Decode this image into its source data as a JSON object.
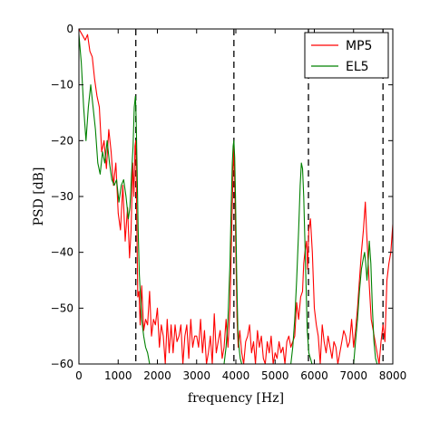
{
  "chart_data": {
    "type": "line",
    "xlabel": "frequency [Hz]",
    "ylabel": "PSD [dB]",
    "xlim": [
      0,
      8000
    ],
    "ylim": [
      -60,
      0
    ],
    "xticks": [
      0,
      1000,
      2000,
      3000,
      4000,
      5000,
      6000,
      7000,
      8000
    ],
    "yticks": [
      0,
      -10,
      -20,
      -30,
      -40,
      -50,
      -60
    ],
    "grid": false,
    "legend_position": "top-right",
    "reference_lines": {
      "style": "dashed",
      "color": "#000000",
      "x": [
        1450,
        3950,
        5850,
        7750
      ]
    },
    "series": [
      {
        "name": "MP5",
        "color": "#ff0000",
        "x": [
          0,
          80,
          160,
          220,
          280,
          340,
          400,
          460,
          520,
          580,
          640,
          700,
          760,
          820,
          880,
          940,
          1000,
          1060,
          1120,
          1180,
          1240,
          1290,
          1330,
          1370,
          1400,
          1430,
          1450,
          1470,
          1500,
          1530,
          1560,
          1600,
          1650,
          1700,
          1750,
          1800,
          1850,
          1900,
          1950,
          2000,
          2050,
          2100,
          2150,
          2200,
          2250,
          2300,
          2350,
          2400,
          2450,
          2500,
          2550,
          2600,
          2650,
          2700,
          2750,
          2800,
          2850,
          2900,
          2950,
          3000,
          3050,
          3100,
          3150,
          3200,
          3250,
          3300,
          3350,
          3400,
          3450,
          3500,
          3550,
          3600,
          3650,
          3700,
          3750,
          3800,
          3850,
          3900,
          3930,
          3950,
          3970,
          4000,
          4030,
          4060,
          4100,
          4150,
          4200,
          4250,
          4300,
          4350,
          4400,
          4450,
          4500,
          4550,
          4600,
          4650,
          4700,
          4750,
          4800,
          4850,
          4900,
          4950,
          5000,
          5050,
          5100,
          5150,
          5200,
          5250,
          5300,
          5350,
          5400,
          5450,
          5500,
          5550,
          5600,
          5650,
          5700,
          5730,
          5760,
          5800,
          5830,
          5860,
          5900,
          5950,
          6000,
          6050,
          6100,
          6150,
          6200,
          6250,
          6300,
          6350,
          6400,
          6450,
          6500,
          6550,
          6600,
          6650,
          6700,
          6750,
          6800,
          6850,
          6900,
          6950,
          7000,
          7050,
          7100,
          7150,
          7200,
          7250,
          7300,
          7330,
          7360,
          7400,
          7450,
          7500,
          7550,
          7600,
          7650,
          7700,
          7750,
          7800,
          7850,
          7900,
          7950,
          8000
        ],
        "y": [
          0,
          -1,
          -2,
          -1,
          -4,
          -5,
          -9,
          -12,
          -14,
          -22,
          -20,
          -25,
          -18,
          -22,
          -28,
          -24,
          -33,
          -36,
          -28,
          -38,
          -32,
          -41,
          -36,
          -24,
          -30,
          -21,
          -20,
          -32,
          -48,
          -47,
          -53,
          -46,
          -54,
          -52,
          -53,
          -47,
          -55,
          -52,
          -53,
          -50,
          -57,
          -53,
          -55,
          -60,
          -52,
          -58,
          -53,
          -58,
          -53,
          -56,
          -55,
          -53,
          -60,
          -55,
          -53,
          -59,
          -52,
          -57,
          -55,
          -55,
          -57,
          -52,
          -58,
          -54,
          -60,
          -58,
          -55,
          -60,
          -51,
          -58,
          -56,
          -54,
          -59,
          -57,
          -52,
          -57,
          -50,
          -34,
          -25,
          -21,
          -27,
          -40,
          -52,
          -57,
          -54,
          -58,
          -60,
          -56,
          -55,
          -53,
          -58,
          -56,
          -60,
          -54,
          -57,
          -55,
          -59,
          -60,
          -56,
          -58,
          -55,
          -60,
          -58,
          -59,
          -56,
          -58,
          -57,
          -60,
          -56,
          -55,
          -57,
          -56,
          -55,
          -49,
          -52,
          -48,
          -47,
          -42,
          -40,
          -38,
          -43,
          -36,
          -34,
          -40,
          -50,
          -53,
          -55,
          -60,
          -53,
          -56,
          -58,
          -55,
          -57,
          -59,
          -56,
          -57,
          -60,
          -58,
          -56,
          -54,
          -55,
          -57,
          -56,
          -52,
          -57,
          -54,
          -50,
          -45,
          -40,
          -36,
          -31,
          -36,
          -40,
          -46,
          -52,
          -54,
          -56,
          -58,
          -60,
          -56,
          -53,
          -56,
          -45,
          -42,
          -40,
          -35
        ]
      },
      {
        "name": "EL5",
        "color": "#008000",
        "x": [
          0,
          60,
          120,
          180,
          240,
          300,
          360,
          420,
          480,
          540,
          600,
          660,
          720,
          780,
          840,
          900,
          960,
          1020,
          1080,
          1140,
          1200,
          1260,
          1300,
          1340,
          1380,
          1410,
          1440,
          1460,
          1480,
          1510,
          1540,
          1570,
          1600,
          1650,
          1700,
          1750,
          1800,
          3700,
          3750,
          3800,
          3850,
          3880,
          3910,
          3930,
          3950,
          3970,
          3990,
          4020,
          4050,
          4080,
          4110,
          4150,
          5400,
          5450,
          5500,
          5550,
          5600,
          5640,
          5670,
          5700,
          5730,
          5760,
          5790,
          5820,
          5860,
          5900,
          5940,
          6000,
          7000,
          7050,
          7100,
          7150,
          7200,
          7250,
          7280,
          7310,
          7340,
          7370,
          7400,
          7440,
          7480,
          7520,
          7560,
          7600
        ],
        "y": [
          -1,
          -6,
          -14,
          -20,
          -14,
          -10,
          -14,
          -18,
          -24,
          -26,
          -22,
          -24,
          -20,
          -24,
          -27,
          -28,
          -27,
          -31,
          -28,
          -27,
          -30,
          -34,
          -32,
          -26,
          -21,
          -14,
          -12,
          -16,
          -24,
          -36,
          -44,
          -48,
          -52,
          -55,
          -57,
          -58,
          -60,
          -60,
          -57,
          -52,
          -42,
          -32,
          -24,
          -21,
          -20,
          -23,
          -30,
          -44,
          -54,
          -57,
          -59,
          -60,
          -60,
          -57,
          -52,
          -45,
          -36,
          -28,
          -24,
          -25,
          -30,
          -38,
          -46,
          -54,
          -58,
          -59,
          -60,
          -60,
          -60,
          -56,
          -52,
          -47,
          -43,
          -41,
          -40,
          -42,
          -45,
          -42,
          -38,
          -42,
          -50,
          -56,
          -59,
          -60
        ]
      }
    ]
  }
}
